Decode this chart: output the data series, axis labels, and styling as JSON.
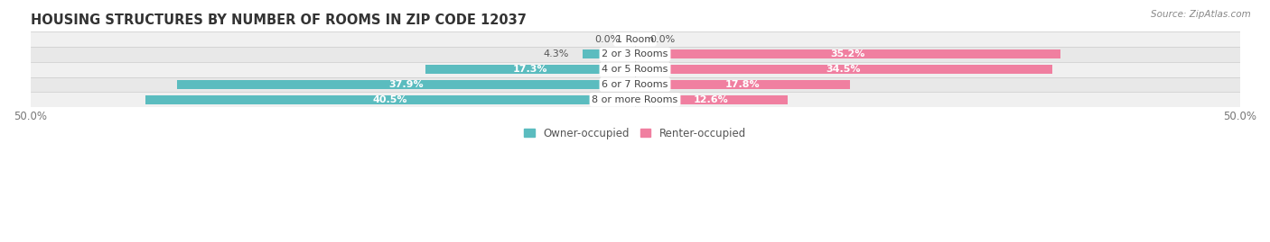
{
  "title": "HOUSING STRUCTURES BY NUMBER OF ROOMS IN ZIP CODE 12037",
  "source": "Source: ZipAtlas.com",
  "categories": [
    "1 Room",
    "2 or 3 Rooms",
    "4 or 5 Rooms",
    "6 or 7 Rooms",
    "8 or more Rooms"
  ],
  "owner_values": [
    0.0,
    4.3,
    17.3,
    37.9,
    40.5
  ],
  "renter_values": [
    0.0,
    35.2,
    34.5,
    17.8,
    12.6
  ],
  "owner_color": "#5bbcbf",
  "renter_color": "#f07fa0",
  "row_bg_colors": [
    "#f0f0f0",
    "#e8e8e8"
  ],
  "x_min": -50.0,
  "x_max": 50.0,
  "x_tick_labels": [
    "50.0%",
    "50.0%"
  ],
  "title_fontsize": 10.5,
  "tick_fontsize": 8.5,
  "bar_label_fontsize": 8.0,
  "category_fontsize": 8.0,
  "legend_fontsize": 8.5,
  "source_fontsize": 7.5,
  "bar_height": 0.6,
  "inside_label_threshold": 10.0
}
